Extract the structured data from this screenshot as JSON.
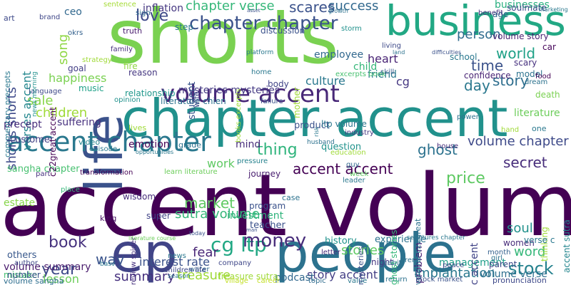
{
  "wordcloud": {
    "words": [
      {
        "text": "accent volume",
        "color": "#440154"
      },
      {
        "text": "shorts",
        "color": "#7ad151"
      },
      {
        "text": "chapter accent",
        "color": "#21918c"
      },
      {
        "text": "people",
        "color": "#2c728e"
      },
      {
        "text": "life",
        "color": "#3b528b"
      },
      {
        "text": "business",
        "color": "#22a884"
      },
      {
        "text": "ep",
        "color": "#414487"
      },
      {
        "text": "accent chapter",
        "color": "#2a788e"
      },
      {
        "text": "volume accent",
        "color": "#482878"
      },
      {
        "text": "chapter chapter",
        "color": "#3b528b"
      },
      {
        "text": "cg ltp",
        "color": "#22a884"
      },
      {
        "text": "stock",
        "color": "#26828e"
      },
      {
        "text": "money",
        "color": "#472c7a"
      },
      {
        "text": "thing",
        "color": "#2fb47c"
      },
      {
        "text": "book",
        "color": "#46327e"
      },
      {
        "text": "year",
        "color": "#3e4a89"
      },
      {
        "text": "world",
        "color": "#1fa187"
      },
      {
        "text": "love",
        "color": "#3e4989"
      },
      {
        "text": "chapter verse",
        "color": "#35b779"
      },
      {
        "text": "success",
        "color": "#31688e"
      },
      {
        "text": "volume chapter",
        "color": "#3e4a89"
      },
      {
        "text": "secret",
        "color": "#472d7b"
      },
      {
        "text": "price",
        "color": "#5ec962"
      },
      {
        "text": "accent accent",
        "color": "#440154"
      },
      {
        "text": "ghost",
        "color": "#2c728e"
      },
      {
        "text": "market",
        "color": "#5ec962"
      },
      {
        "text": "sutra volume",
        "color": "#35b779"
      },
      {
        "text": "summary",
        "color": "#46307e"
      },
      {
        "text": "treasure",
        "color": "#a0da39"
      },
      {
        "text": "way",
        "color": "#3a548c"
      },
      {
        "text": "fear",
        "color": "#482576"
      },
      {
        "text": "word",
        "color": "#35b779"
      },
      {
        "text": "soul",
        "color": "#21918c"
      },
      {
        "text": "stories",
        "color": "#5ec962"
      },
      {
        "text": "implantation",
        "color": "#2a788e"
      },
      {
        "text": "story accent",
        "color": "#433e85"
      },
      {
        "text": "children",
        "color": "#a0da39"
      },
      {
        "text": "day",
        "color": "#2a788e"
      },
      {
        "text": "time",
        "color": "#3b528b"
      },
      {
        "text": "story",
        "color": "#2e6e8e"
      },
      {
        "text": "person",
        "color": "#2f6c8e"
      },
      {
        "text": "song",
        "color": "#8fd744"
      },
      {
        "text": "sale",
        "color": "#86d549"
      },
      {
        "text": "mysteries mysteries",
        "color": "#443983"
      },
      {
        "text": "culture",
        "color": "#2a788e"
      },
      {
        "text": "heart",
        "color": "#482374"
      },
      {
        "text": "employee",
        "color": "#31688e"
      },
      {
        "text": "happiness",
        "color": "#7ad151"
      },
      {
        "text": "inflation",
        "color": "#453781"
      },
      {
        "text": "scares",
        "color": "#3b528b"
      },
      {
        "text": "businesses",
        "color": "#29af7f"
      },
      {
        "text": "ceo",
        "color": "#31688e"
      },
      {
        "text": "shorts shorts",
        "color": "#3e4989"
      },
      {
        "text": "verses accent",
        "color": "#24878e"
      },
      {
        "text": "interest rate",
        "color": "#3b528b"
      },
      {
        "text": "lesson",
        "color": "#6ccd5a"
      },
      {
        "text": "volume summary",
        "color": "#481a6c"
      },
      {
        "text": "emotion",
        "color": "#440154"
      },
      {
        "text": "mind",
        "color": "#472c7a"
      },
      {
        "text": "work",
        "color": "#5ec962"
      },
      {
        "text": "customer",
        "color": "#424086"
      },
      {
        "text": "product",
        "color": "#3b528b"
      },
      {
        "text": "question",
        "color": "#20928c"
      },
      {
        "text": "precept",
        "color": "#472d7b"
      },
      {
        "text": "suffering",
        "color": "#46307e"
      },
      {
        "text": "literature",
        "color": "#6ccd5a"
      },
      {
        "text": "literature chien",
        "color": "#2c728e"
      },
      {
        "text": "ltp volume",
        "color": "#2a768e"
      },
      {
        "text": "management",
        "color": "#1f9e89"
      },
      {
        "text": "experience",
        "color": "#2c728e"
      },
      {
        "text": "history",
        "color": "#20928c"
      },
      {
        "text": "podcast",
        "color": "#31688e"
      },
      {
        "text": "teacher",
        "color": "#3b528b"
      },
      {
        "text": "investment",
        "color": "#2fb47c"
      },
      {
        "text": "volume verse",
        "color": "#2e6e8e"
      },
      {
        "text": "c accent",
        "color": "#414487"
      },
      {
        "text": "problem",
        "color": "#482173"
      },
      {
        "text": "night",
        "color": "#453781"
      },
      {
        "text": "parent",
        "color": "#3e4989"
      },
      {
        "text": "women",
        "color": "#472c7a"
      },
      {
        "text": "estate",
        "color": "#86d549"
      },
      {
        "text": "mistake",
        "color": "#44bf70"
      },
      {
        "text": "others",
        "color": "#38588c"
      },
      {
        "text": "number",
        "color": "#3a538b"
      },
      {
        "text": "author",
        "color": "#3f4788"
      },
      {
        "text": "volume sangha",
        "color": "#2e6e8e"
      },
      {
        "text": "sangha chapter",
        "color": "#46c06f"
      },
      {
        "text": "child",
        "color": "#35b779"
      },
      {
        "text": "friend",
        "color": "#2a788e"
      },
      {
        "text": "school",
        "color": "#2a788e"
      },
      {
        "text": "confidence",
        "color": "#482374"
      },
      {
        "text": "volume story",
        "color": "#481f70"
      },
      {
        "text": "age",
        "color": "#31688e"
      },
      {
        "text": "scary",
        "color": "#46307e"
      },
      {
        "text": "model",
        "color": "#2c728e"
      },
      {
        "text": "car",
        "color": "#450559"
      },
      {
        "text": "soulmate",
        "color": "#3e4989"
      },
      {
        "text": "benefit",
        "color": "#46327e"
      },
      {
        "text": "student",
        "color": "#39568c"
      },
      {
        "text": "reason",
        "color": "#453781"
      },
      {
        "text": "fire",
        "color": "#8fd744"
      },
      {
        "text": "goal",
        "color": "#433e85"
      },
      {
        "text": "music",
        "color": "#1fa188"
      },
      {
        "text": "relationship",
        "color": "#1f978b"
      },
      {
        "text": "opinion",
        "color": "#21918c"
      },
      {
        "text": "failure",
        "color": "#3b528b"
      },
      {
        "text": "body",
        "color": "#414487"
      },
      {
        "text": "mother",
        "color": "#a0da39"
      },
      {
        "text": "home",
        "color": "#2a788e"
      },
      {
        "text": "truth",
        "color": "#481b6d"
      },
      {
        "text": "family",
        "color": "#46307e"
      },
      {
        "text": "strategy",
        "color": "#a0da39"
      },
      {
        "text": "step",
        "color": "#2a788e"
      },
      {
        "text": "discussion",
        "color": "#3b528b"
      },
      {
        "text": "storm",
        "color": "#21918c"
      },
      {
        "text": "living",
        "color": "#3e4a89"
      },
      {
        "text": "skill",
        "color": "#38598c"
      },
      {
        "text": "excerpts book",
        "color": "#46c06f"
      },
      {
        "text": "language",
        "color": "#3e4989"
      },
      {
        "text": "art",
        "color": "#3e4989"
      },
      {
        "text": "okrs",
        "color": "#34618d"
      },
      {
        "text": "brand",
        "color": "#3f4788"
      },
      {
        "text": "sentence",
        "color": "#a5db36"
      },
      {
        "text": "sign",
        "color": "#306a8e"
      },
      {
        "text": "commentary precepts",
        "color": "#2a788e"
      },
      {
        "text": "video",
        "color": "#25848e"
      },
      {
        "text": "episode",
        "color": "#2a788e"
      },
      {
        "text": "grade",
        "color": "#2c718e"
      },
      {
        "text": "lives",
        "color": "#a0da39"
      },
      {
        "text": "journey",
        "color": "#481d6f"
      },
      {
        "text": "pressure",
        "color": "#26828e"
      },
      {
        "text": "guy",
        "color": "#31688e"
      },
      {
        "text": "week",
        "color": "#5ec962"
      },
      {
        "text": "education",
        "color": "#a0da39"
      },
      {
        "text": "leader",
        "color": "#2a788e"
      },
      {
        "text": "husband",
        "color": "#2c718e"
      },
      {
        "text": "industry",
        "color": "#453781"
      },
      {
        "text": "transformation",
        "color": "#440154"
      },
      {
        "text": "learn literature",
        "color": "#6ccd5a"
      },
      {
        "text": "part",
        "color": "#46307e"
      },
      {
        "text": "place",
        "color": "#35b779"
      },
      {
        "text": "wisdom",
        "color": "#472d7b"
      },
      {
        "text": "super",
        "color": "#414487"
      },
      {
        "text": "program",
        "color": "#3b528b"
      },
      {
        "text": "case",
        "color": "#2c728e"
      },
      {
        "text": "king",
        "color": "#471063"
      },
      {
        "text": "review spider",
        "color": "#46307e"
      },
      {
        "text": "company",
        "color": "#3f4788"
      },
      {
        "text": "water",
        "color": "#31688e"
      },
      {
        "text": "children life",
        "color": "#3e4989"
      },
      {
        "text": "treasure sutra",
        "color": "#a0da39"
      },
      {
        "text": "village",
        "color": "#c2df23"
      },
      {
        "text": "career",
        "color": "#c2df23"
      },
      {
        "text": "topic",
        "color": "#2f6c8e"
      },
      {
        "text": "value",
        "color": "#2a788e"
      },
      {
        "text": "return",
        "color": "#2c718e"
      },
      {
        "text": "stock market",
        "color": "#3b528b"
      },
      {
        "text": "pronunciation",
        "color": "#3e4989"
      },
      {
        "text": "letter",
        "color": "#472c7a"
      },
      {
        "text": "trend",
        "color": "#2c728e"
      },
      {
        "text": "peace",
        "color": "#3e4989"
      },
      {
        "text": "girl",
        "color": "#2c728e"
      },
      {
        "text": "month",
        "color": "#34618d"
      },
      {
        "text": "news",
        "color": "#2a788e"
      },
      {
        "text": "season",
        "color": "#2a788e"
      },
      {
        "text": "basv",
        "color": "#2a788e"
      },
      {
        "text": "scriptures chapter",
        "color": "#2a788e"
      },
      {
        "text": "thinking",
        "color": "#a0da39"
      },
      {
        "text": "accent sutra",
        "color": "#24868e"
      },
      {
        "text": "death",
        "color": "#7ad151"
      },
      {
        "text": "food",
        "color": "#440154"
      },
      {
        "text": "dream",
        "color": "#2c728e"
      },
      {
        "text": "power",
        "color": "#2c728e"
      },
      {
        "text": "one",
        "color": "#2a788e"
      },
      {
        "text": "hand",
        "color": "#a0da39"
      },
      {
        "text": "house",
        "color": "#472c7a"
      },
      {
        "text": "verse c",
        "color": "#2a788e"
      },
      {
        "text": "ghost stories",
        "color": "#35b779"
      },
      {
        "text": "volume c22great",
        "color": "#2c718e"
      },
      {
        "text": "mysteries",
        "color": "#3b528b"
      },
      {
        "text": "habit",
        "color": "#2e6e8e"
      },
      {
        "text": "books excerpts",
        "color": "#a0da39"
      },
      {
        "text": "wife",
        "color": "#3e4989"
      },
      {
        "text": "platform",
        "color": "#2a788e"
      },
      {
        "text": "man",
        "color": "#3b528b"
      },
      {
        "text": "today",
        "color": "#3b528b"
      },
      {
        "text": "literature course",
        "color": "#6ccd5a"
      },
      {
        "text": "opportunities",
        "color": "#2a788e"
      },
      {
        "text": "c22great accent",
        "color": "#440154"
      },
      {
        "text": "news morning",
        "color": "#21918c"
      },
      {
        "text": "asset",
        "color": "#3b528b"
      },
      {
        "text": "growth",
        "color": "#2c728e"
      },
      {
        "text": "marketing",
        "color": "#2a788e"
      },
      {
        "text": "difficulties",
        "color": "#3b528b"
      },
      {
        "text": "land",
        "color": "#2c728e"
      },
      {
        "text": "cg",
        "color": "#453781"
      },
      {
        "text": "risk",
        "color": "#2a788e"
      }
    ]
  }
}
